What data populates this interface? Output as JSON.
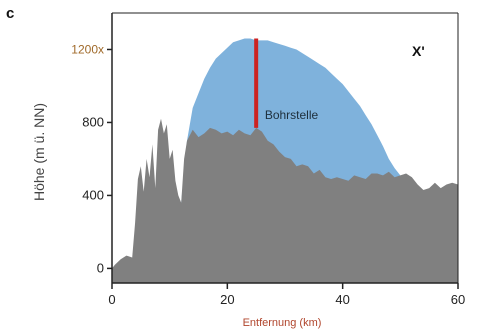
{
  "chart_data": {
    "type": "area",
    "panel_label": "c",
    "corner_label": "X'",
    "xlabel": "Entfernung (km)",
    "ylabel": "Höhe (m ü. NN)",
    "xlim": [
      0,
      60
    ],
    "ylim": [
      -80,
      1400
    ],
    "x_ticks": [
      {
        "value": 0,
        "label": "0"
      },
      {
        "value": 20,
        "label": "20"
      },
      {
        "value": 40,
        "label": "40"
      },
      {
        "value": 60,
        "label": "60"
      }
    ],
    "y_ticks": [
      {
        "value": 0,
        "label": "0"
      },
      {
        "value": 400,
        "label": "400"
      },
      {
        "value": 800,
        "label": "800"
      },
      {
        "value": 1200,
        "label": "1200x",
        "highlight": true
      }
    ],
    "grid": false,
    "colors": {
      "terrain": "#808080",
      "ice": "#7fb2dc",
      "ice_edge": "#6a9fcb",
      "borehole": "#cc2222",
      "axis": "#222222"
    },
    "series": [
      {
        "role": "terrain",
        "x": [
          0,
          0.5,
          1.5,
          2.5,
          3.5,
          4.0,
          4.5,
          5.0,
          5.5,
          6.0,
          6.5,
          7.0,
          7.5,
          8.0,
          8.5,
          9.0,
          9.5,
          10.0,
          10.5,
          11.0,
          11.5,
          12.0,
          12.5,
          13.0,
          14.0,
          15.0,
          16.0,
          17.0,
          18.0,
          19.0,
          20.0,
          21.0,
          22.0,
          23.0,
          24.0,
          25.0,
          26.0,
          27.0,
          28.0,
          29.0,
          30.0,
          31.0,
          32.0,
          33.0,
          34.0,
          35.0,
          36.0,
          37.0,
          38.0,
          39.0,
          40.0,
          41.0,
          42.0,
          43.0,
          44.0,
          45.0,
          46.0,
          47.0,
          48.0,
          49.0,
          50.0,
          51.0,
          52.0,
          53.0,
          54.0,
          55.0,
          56.0,
          57.0,
          58.0,
          59.0,
          60.0
        ],
        "y": [
          0,
          20,
          50,
          70,
          60,
          250,
          490,
          560,
          420,
          600,
          500,
          680,
          440,
          760,
          820,
          740,
          790,
          600,
          650,
          480,
          400,
          360,
          600,
          700,
          760,
          720,
          740,
          770,
          760,
          740,
          750,
          730,
          760,
          740,
          730,
          770,
          750,
          700,
          680,
          640,
          610,
          600,
          560,
          570,
          560,
          520,
          540,
          500,
          490,
          500,
          490,
          480,
          510,
          500,
          490,
          520,
          520,
          510,
          530,
          500,
          510,
          520,
          500,
          460,
          430,
          440,
          470,
          440,
          460,
          470,
          460
        ]
      },
      {
        "role": "ice_surface",
        "x": [
          12.0,
          13.0,
          14.0,
          15.0,
          16.0,
          17.0,
          18.0,
          19.0,
          20.0,
          21.0,
          22.0,
          23.0,
          24.0,
          25.0,
          26.0,
          27.0,
          28.0,
          29.0,
          30.0,
          31.0,
          32.0,
          33.0,
          34.0,
          35.0,
          36.0,
          37.0,
          38.0,
          39.0,
          40.0,
          41.0,
          42.0,
          43.0,
          44.0,
          45.0,
          46.0,
          47.0,
          48.0,
          49.0,
          50.0,
          51.0,
          52.0
        ],
        "y": [
          360,
          700,
          880,
          960,
          1040,
          1100,
          1150,
          1180,
          1210,
          1240,
          1250,
          1260,
          1260,
          1250,
          1250,
          1250,
          1240,
          1230,
          1220,
          1210,
          1200,
          1180,
          1160,
          1140,
          1120,
          1100,
          1070,
          1040,
          1010,
          970,
          930,
          890,
          840,
          790,
          730,
          670,
          600,
          550,
          510,
          480,
          500
        ]
      }
    ],
    "annotations": [
      {
        "type": "vline",
        "label": "",
        "x": 25.0,
        "y_from": 770,
        "y_to": 1260
      },
      {
        "type": "text",
        "label": "Bohrstelle",
        "x": 26.5,
        "y": 820
      }
    ]
  }
}
